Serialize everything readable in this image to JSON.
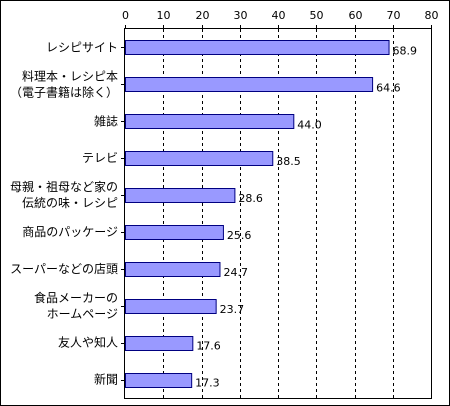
{
  "chart_data": {
    "type": "bar",
    "orientation": "horizontal",
    "categories": [
      [
        "レシピサイト"
      ],
      [
        "料理本・レシピ本",
        "（電子書籍は除く）"
      ],
      [
        "雑誌"
      ],
      [
        "テレビ"
      ],
      [
        "母親・祖母など家の",
        "伝統の味・レシピ"
      ],
      [
        "商品のパッケージ"
      ],
      [
        "スーパーなどの店頭"
      ],
      [
        "食品メーカーの",
        "ホームページ"
      ],
      [
        "友人や知人"
      ],
      [
        "新聞"
      ]
    ],
    "values": [
      68.9,
      64.6,
      44.0,
      38.5,
      28.6,
      25.6,
      24.7,
      23.7,
      17.6,
      17.3
    ],
    "value_labels": [
      "68.9",
      "64.6",
      "44.0",
      "38.5",
      "28.6",
      "25.6",
      "24.7",
      "23.7",
      "17.6",
      "17.3"
    ],
    "xlim": [
      0,
      80
    ],
    "xticks": [
      0,
      10,
      20,
      30,
      40,
      50,
      60,
      70,
      80
    ],
    "axis_position": "top",
    "grid": "dashed vertical",
    "bar_color": "#9999ff",
    "bar_edge_color": "#000080"
  }
}
